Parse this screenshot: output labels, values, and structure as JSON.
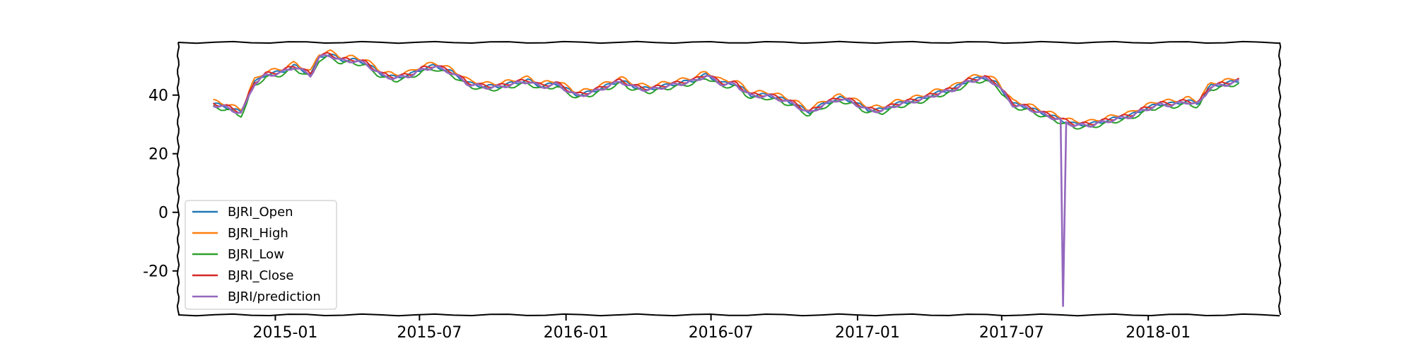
{
  "chart_data": {
    "type": "line",
    "title": "",
    "xlabel": "",
    "ylabel": "",
    "ylim": [
      -35,
      58
    ],
    "xlim": [
      "2014-09-01",
      "2018-06-15"
    ],
    "x_ticks": [
      {
        "date": "2015-01-01",
        "label": "2015-01"
      },
      {
        "date": "2015-07-01",
        "label": "2015-07"
      },
      {
        "date": "2016-01-01",
        "label": "2016-01"
      },
      {
        "date": "2016-07-01",
        "label": "2016-07"
      },
      {
        "date": "2017-01-01",
        "label": "2017-01"
      },
      {
        "date": "2017-07-01",
        "label": "2017-07"
      },
      {
        "date": "2018-01-01",
        "label": "2018-01"
      }
    ],
    "y_ticks": [
      {
        "value": 40,
        "label": "40"
      },
      {
        "value": 20,
        "label": "20"
      },
      {
        "value": 0,
        "label": "0"
      },
      {
        "value": -20,
        "label": "-20"
      }
    ],
    "legend_position": "lower-left",
    "base_series": {
      "dates": [
        "2014-10-15",
        "2014-11-01",
        "2014-11-20",
        "2014-12-05",
        "2014-12-20",
        "2015-01-10",
        "2015-01-25",
        "2015-02-15",
        "2015-02-25",
        "2015-03-10",
        "2015-03-25",
        "2015-04-10",
        "2015-04-25",
        "2015-05-15",
        "2015-06-01",
        "2015-06-20",
        "2015-07-05",
        "2015-07-20",
        "2015-08-10",
        "2015-09-01",
        "2015-09-20",
        "2015-10-10",
        "2015-10-25",
        "2015-11-15",
        "2015-12-01",
        "2015-12-20",
        "2016-01-15",
        "2016-02-01",
        "2016-02-20",
        "2016-03-10",
        "2016-03-25",
        "2016-04-15",
        "2016-05-01",
        "2016-05-20",
        "2016-06-10",
        "2016-06-25",
        "2016-07-15",
        "2016-08-01",
        "2016-08-20",
        "2016-09-10",
        "2016-09-25",
        "2016-10-15",
        "2016-11-01",
        "2016-11-20",
        "2016-12-10",
        "2016-12-25",
        "2017-01-15",
        "2017-02-01",
        "2017-02-20",
        "2017-03-10",
        "2017-03-25",
        "2017-04-15",
        "2017-05-01",
        "2017-05-20",
        "2017-06-10",
        "2017-06-25",
        "2017-07-15",
        "2017-08-01",
        "2017-08-20",
        "2017-09-10",
        "2017-09-20",
        "2017-10-01",
        "2017-10-20",
        "2017-11-05",
        "2017-11-20",
        "2017-12-10",
        "2017-12-25",
        "2018-01-15",
        "2018-02-01",
        "2018-02-20",
        "2018-03-05",
        "2018-03-20",
        "2018-04-10",
        "2018-04-25"
      ],
      "close": [
        37,
        36,
        34,
        44,
        47,
        48,
        50,
        47,
        53,
        54,
        52,
        52,
        51,
        47,
        46,
        47,
        49,
        50,
        48,
        44,
        43,
        43,
        44,
        45,
        43,
        44,
        40,
        41,
        43,
        45,
        43,
        42,
        43,
        44,
        45,
        47,
        44,
        44,
        40,
        40,
        39,
        37,
        34,
        37,
        39,
        38,
        35,
        35,
        37,
        38,
        39,
        41,
        42,
        45,
        46,
        44,
        37,
        36,
        34,
        32,
        31,
        30,
        30,
        31,
        32,
        33,
        35,
        37,
        37,
        38,
        37,
        43,
        44,
        45
      ]
    },
    "series": [
      {
        "name": "BJRI_Open",
        "color": "#1f77b4",
        "offset": 0.0
      },
      {
        "name": "BJRI_High",
        "color": "#ff7f0e",
        "offset": 1.0
      },
      {
        "name": "BJRI_Low",
        "color": "#2ca02c",
        "offset": -1.0
      },
      {
        "name": "BJRI_Close",
        "color": "#d62728",
        "offset": 0.2
      },
      {
        "name": "BJRI/prediction",
        "color": "#9467bd",
        "offset": -0.3,
        "spike": {
          "date": "2017-09-15",
          "value": -32
        }
      }
    ]
  }
}
